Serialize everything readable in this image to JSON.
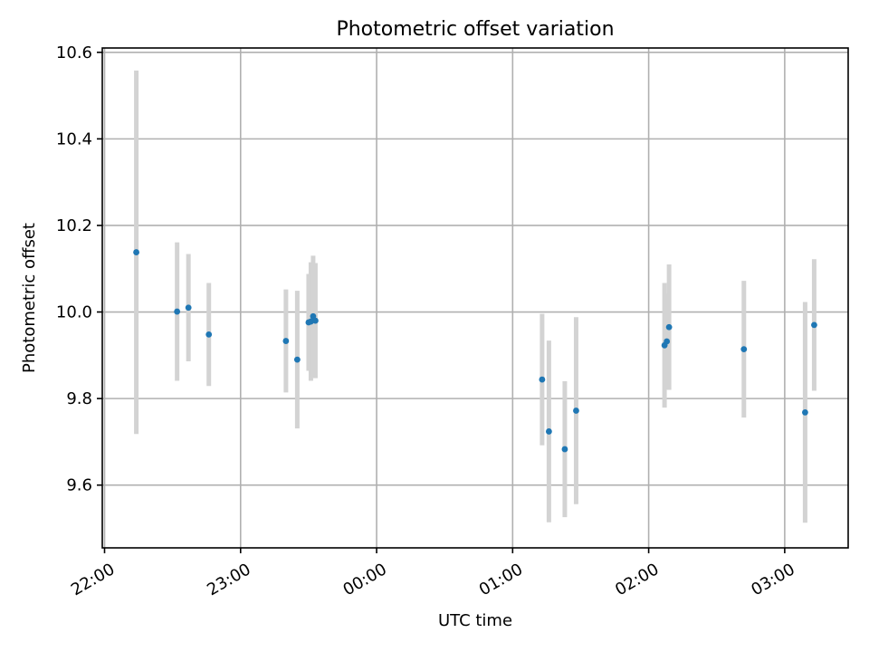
{
  "chart_data": {
    "type": "scatter",
    "title": "Photometric offset variation",
    "xlabel": "UTC time",
    "ylabel": "Photometric offset",
    "x_ticks": [
      "22:00",
      "23:00",
      "00:00",
      "01:00",
      "02:00",
      "03:00"
    ],
    "y_ticks": [
      "9.6",
      "9.8",
      "10.0",
      "10.2",
      "10.4",
      "10.6"
    ],
    "xlim": [
      "21:59",
      "03:28"
    ],
    "ylim": [
      9.455,
      10.61
    ],
    "grid": true,
    "errorbar_color": "#d3d3d3",
    "marker_color": "#1f77b4",
    "points": [
      {
        "x": "22:14",
        "y": 10.138,
        "err": 0.42
      },
      {
        "x": "22:32",
        "y": 10.001,
        "err": 0.16
      },
      {
        "x": "22:37",
        "y": 10.01,
        "err": 0.124
      },
      {
        "x": "22:46",
        "y": 9.948,
        "err": 0.119
      },
      {
        "x": "23:20",
        "y": 9.933,
        "err": 0.119
      },
      {
        "x": "23:25",
        "y": 9.89,
        "err": 0.159
      },
      {
        "x": "23:30",
        "y": 9.976,
        "err": 0.112
      },
      {
        "x": "23:31",
        "y": 9.978,
        "err": 0.137
      },
      {
        "x": "23:32",
        "y": 9.99,
        "err": 0.14
      },
      {
        "x": "23:33",
        "y": 9.98,
        "err": 0.133
      },
      {
        "x": "01:13",
        "y": 9.844,
        "err": 0.152
      },
      {
        "x": "01:16",
        "y": 9.724,
        "err": 0.21
      },
      {
        "x": "01:23",
        "y": 9.683,
        "err": 0.157
      },
      {
        "x": "01:28",
        "y": 9.772,
        "err": 0.216
      },
      {
        "x": "02:07",
        "y": 9.923,
        "err": 0.144
      },
      {
        "x": "02:08",
        "y": 9.932,
        "err": 0.111
      },
      {
        "x": "02:09",
        "y": 9.965,
        "err": 0.145
      },
      {
        "x": "02:42",
        "y": 9.914,
        "err": 0.158
      },
      {
        "x": "03:09",
        "y": 9.768,
        "err": 0.255
      },
      {
        "x": "03:13",
        "y": 9.97,
        "err": 0.152
      }
    ]
  }
}
